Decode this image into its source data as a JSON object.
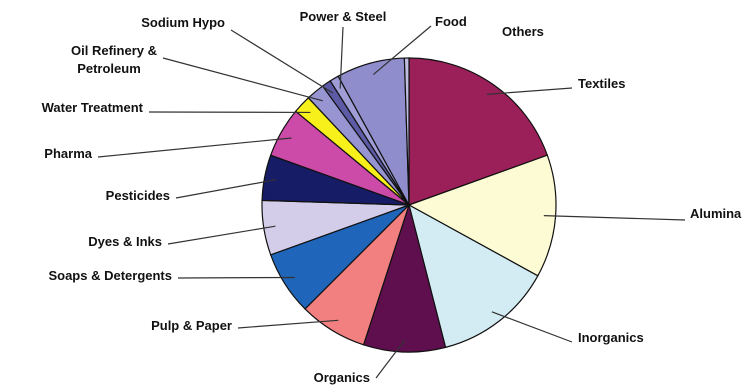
{
  "chart_data": {
    "type": "pie",
    "title": "",
    "legend": "none",
    "unit": "percent",
    "start": "12 o'clock, clockwise",
    "slices": [
      {
        "label": "Textiles",
        "value": 19.5,
        "color": "#9b1f58"
      },
      {
        "label": "Alumina",
        "value": 13.5,
        "color": "#fdfbd3"
      },
      {
        "label": "Inorganics",
        "value": 13.0,
        "color": "#d3ecf4"
      },
      {
        "label": "Organics",
        "value": 9.0,
        "color": "#5f0f4e"
      },
      {
        "label": "Pulp & Paper",
        "value": 7.5,
        "color": "#f28080"
      },
      {
        "label": "Soaps & Detergents",
        "value": 7.0,
        "color": "#1f65b9"
      },
      {
        "label": "Dyes & Inks",
        "value": 6.0,
        "color": "#d4cdea"
      },
      {
        "label": "Pesticides",
        "value": 5.0,
        "color": "#161c66"
      },
      {
        "label": "Pharma",
        "value": 5.5,
        "color": "#cc4aa8"
      },
      {
        "label": "Water Treatment",
        "value": 2.0,
        "color": "#f8f01a"
      },
      {
        "label": "Oil Refinery & Petroleum",
        "label_lines": [
          "Oil Refinery &",
          "Petroleum"
        ],
        "value": 2.0,
        "color": "#9795d1"
      },
      {
        "label": "Sodium Hypo",
        "value": 1.0,
        "color": "#5d5aa6"
      },
      {
        "label": "Power & Steel",
        "value": 1.0,
        "color": "#9f9cd6"
      },
      {
        "label": "Food",
        "value": 7.5,
        "color": "#8f8dcc"
      },
      {
        "label": "Others",
        "value": 0.5,
        "color": "#c0bde0"
      }
    ]
  }
}
